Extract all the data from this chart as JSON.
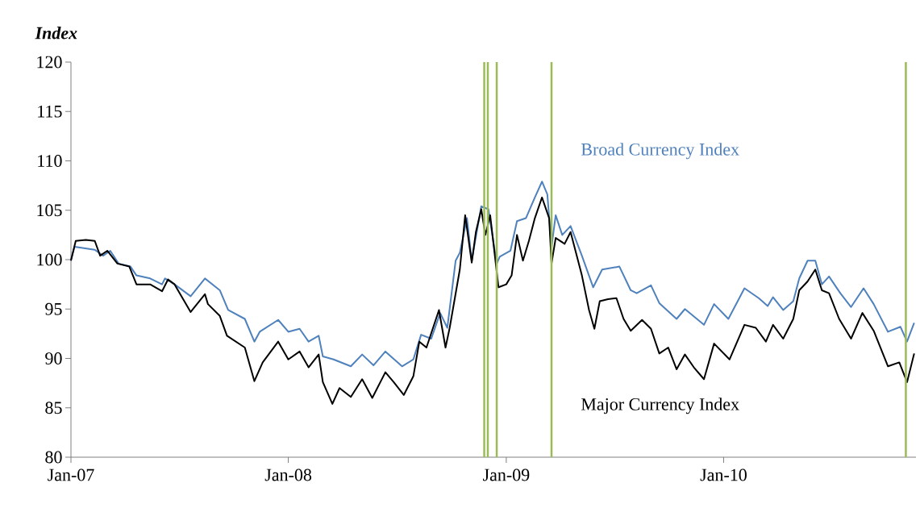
{
  "chart_data": {
    "type": "line",
    "ylabel": "Index",
    "legend": false,
    "marker": "none",
    "line_style": "solid",
    "grid": false,
    "xlim": [
      "2007-01-01",
      "2010-11-20"
    ],
    "xticks": [
      {
        "value": "2007-01-01",
        "label": "Jan-07"
      },
      {
        "value": "2008-01-01",
        "label": "Jan-08"
      },
      {
        "value": "2009-01-01",
        "label": "Jan-09"
      },
      {
        "value": "2010-01-01",
        "label": "Jan-10"
      }
    ],
    "ylim": [
      80,
      120
    ],
    "yticks": [
      80,
      85,
      90,
      95,
      100,
      105,
      110,
      115,
      120
    ],
    "ref_lines": [
      {
        "axis": "x",
        "value": "2008-11-25",
        "color": "#9bbb59"
      },
      {
        "axis": "x",
        "value": "2008-12-01",
        "color": "#9bbb59"
      },
      {
        "axis": "x",
        "value": "2008-12-16",
        "color": "#9bbb59"
      },
      {
        "axis": "x",
        "value": "2009-03-18",
        "color": "#9bbb59"
      },
      {
        "axis": "x",
        "value": "2010-11-03",
        "color": "#9bbb59"
      }
    ],
    "series": [
      {
        "name": "Broad Currency Index",
        "color": "#4f81bd",
        "x": [
          "2007-01-01",
          "2007-01-07",
          "2007-02-10",
          "2007-02-24",
          "2007-03-08",
          "2007-03-22",
          "2007-04-11",
          "2007-04-21",
          "2007-05-14",
          "2007-06-03",
          "2007-06-08",
          "2007-06-24",
          "2007-07-21",
          "2007-08-14",
          "2007-09-08",
          "2007-09-22",
          "2007-10-20",
          "2007-11-05",
          "2007-11-14",
          "2007-12-15",
          "2008-01-01",
          "2008-01-20",
          "2008-02-04",
          "2008-02-21",
          "2008-02-28",
          "2008-03-17",
          "2008-04-15",
          "2008-05-04",
          "2008-05-23",
          "2008-06-12",
          "2008-07-10",
          "2008-07-29",
          "2008-08-11",
          "2008-08-28",
          "2008-09-12",
          "2008-09-24",
          "2008-10-08",
          "2008-10-15",
          "2008-10-27",
          "2008-11-04",
          "2008-11-20",
          "2008-12-02",
          "2008-12-16",
          "2008-12-21",
          "2009-01-08",
          "2009-01-19",
          "2009-02-03",
          "2009-02-18",
          "2009-03-02",
          "2009-03-11",
          "2009-03-18",
          "2009-03-25",
          "2009-04-05",
          "2009-04-19",
          "2009-05-08",
          "2009-05-27",
          "2009-06-11",
          "2009-07-10",
          "2009-07-29",
          "2009-08-08",
          "2009-09-01",
          "2009-09-15",
          "2009-10-14",
          "2009-10-28",
          "2009-11-29",
          "2009-12-16",
          "2010-01-09",
          "2010-02-05",
          "2010-03-01",
          "2010-03-16",
          "2010-03-25",
          "2010-04-11",
          "2010-04-28",
          "2010-05-08",
          "2010-05-22",
          "2010-06-04",
          "2010-06-15",
          "2010-06-27",
          "2010-07-16",
          "2010-08-03",
          "2010-08-24",
          "2010-09-10",
          "2010-10-04",
          "2010-10-25",
          "2010-11-05",
          "2010-11-17"
        ],
        "values": [
          100,
          101.3,
          101.0,
          100.4,
          100.9,
          99.6,
          99.3,
          98.4,
          98.1,
          97.5,
          98.1,
          97.5,
          96.3,
          98.1,
          96.9,
          94.9,
          94.0,
          91.7,
          92.7,
          93.9,
          92.7,
          93.0,
          91.7,
          92.3,
          90.2,
          89.9,
          89.2,
          90.4,
          89.3,
          90.7,
          89.2,
          89.9,
          92.4,
          92.0,
          94.6,
          93.1,
          99.9,
          100.7,
          104.2,
          99.9,
          105.4,
          105.1,
          99.6,
          100.3,
          100.9,
          103.9,
          104.2,
          106.3,
          107.9,
          106.6,
          101.3,
          104.5,
          102.5,
          103.4,
          100.4,
          97.2,
          99.0,
          99.3,
          96.9,
          96.6,
          97.4,
          95.6,
          94.0,
          95.0,
          93.4,
          95.5,
          94.0,
          97.1,
          96.1,
          95.3,
          96.2,
          94.9,
          95.8,
          98.1,
          99.9,
          99.9,
          97.5,
          98.3,
          96.6,
          95.2,
          97.1,
          95.5,
          92.7,
          93.2,
          91.7,
          93.6
        ]
      },
      {
        "name": "Major Currency Index",
        "color": "#000000",
        "x": [
          "2007-01-01",
          "2007-01-09",
          "2007-01-26",
          "2007-02-10",
          "2007-02-19",
          "2007-03-03",
          "2007-03-20",
          "2007-04-09",
          "2007-04-21",
          "2007-05-14",
          "2007-06-03",
          "2007-06-13",
          "2007-06-24",
          "2007-07-21",
          "2007-08-14",
          "2007-08-19",
          "2007-09-08",
          "2007-09-20",
          "2007-10-20",
          "2007-11-05",
          "2007-11-19",
          "2007-12-15",
          "2008-01-01",
          "2008-01-20",
          "2008-02-04",
          "2008-02-21",
          "2008-02-28",
          "2008-03-15",
          "2008-03-27",
          "2008-04-15",
          "2008-05-04",
          "2008-05-21",
          "2008-06-12",
          "2008-06-26",
          "2008-07-13",
          "2008-07-29",
          "2008-08-08",
          "2008-08-20",
          "2008-09-10",
          "2008-09-21",
          "2008-09-28",
          "2008-10-15",
          "2008-10-24",
          "2008-11-04",
          "2008-11-11",
          "2008-11-20",
          "2008-11-27",
          "2008-12-05",
          "2008-12-19",
          "2009-01-01",
          "2009-01-10",
          "2009-01-19",
          "2009-01-29",
          "2009-02-08",
          "2009-02-18",
          "2009-03-02",
          "2009-03-14",
          "2009-03-18",
          "2009-03-25",
          "2009-04-09",
          "2009-04-19",
          "2009-05-08",
          "2009-05-20",
          "2009-05-29",
          "2009-06-07",
          "2009-06-21",
          "2009-07-05",
          "2009-07-17",
          "2009-07-29",
          "2009-08-17",
          "2009-09-01",
          "2009-09-15",
          "2009-09-30",
          "2009-10-14",
          "2009-10-28",
          "2009-11-12",
          "2009-11-29",
          "2009-12-16",
          "2010-01-11",
          "2010-02-05",
          "2010-02-24",
          "2010-03-13",
          "2010-03-25",
          "2010-04-11",
          "2010-04-28",
          "2010-05-08",
          "2010-05-22",
          "2010-06-04",
          "2010-06-15",
          "2010-06-27",
          "2010-07-14",
          "2010-08-03",
          "2010-08-22",
          "2010-09-10",
          "2010-10-04",
          "2010-10-23",
          "2010-11-05",
          "2010-11-17"
        ],
        "values": [
          99.9,
          101.9,
          102.0,
          101.9,
          100.4,
          100.9,
          99.6,
          99.3,
          97.5,
          97.5,
          96.8,
          98.0,
          97.5,
          94.7,
          96.5,
          95.5,
          94.3,
          92.3,
          91.1,
          87.7,
          89.6,
          91.7,
          89.9,
          90.7,
          89.1,
          90.4,
          87.6,
          85.4,
          87.0,
          86.1,
          87.9,
          86.0,
          88.6,
          87.6,
          86.3,
          88.2,
          91.7,
          91.1,
          94.9,
          91.1,
          93.1,
          99.0,
          104.5,
          99.7,
          102.8,
          105.1,
          102.5,
          104.5,
          97.2,
          97.5,
          98.4,
          102.5,
          99.9,
          101.9,
          104.2,
          106.3,
          104.2,
          99.6,
          102.2,
          101.6,
          102.8,
          98.4,
          94.9,
          93.0,
          95.8,
          96.0,
          96.1,
          94.0,
          92.8,
          93.9,
          93.0,
          90.5,
          91.1,
          88.9,
          90.4,
          89.1,
          87.9,
          91.5,
          89.9,
          93.4,
          93.1,
          91.7,
          93.4,
          92.0,
          94.0,
          96.9,
          97.8,
          99.0,
          96.9,
          96.6,
          94.0,
          92.0,
          94.6,
          92.8,
          89.2,
          89.6,
          87.6,
          90.5
        ]
      }
    ]
  }
}
